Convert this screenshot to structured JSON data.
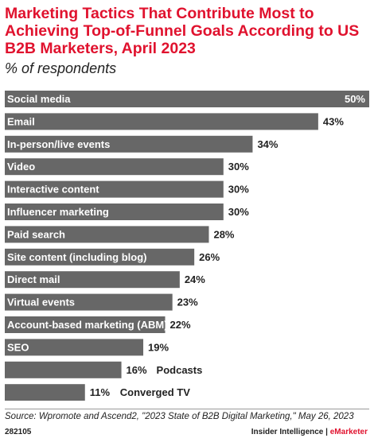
{
  "title": "Marketing Tactics That Contribute Most to Achieving Top-of-Funnel Goals According to US B2B Marketers, April 2023",
  "subtitle": "% of respondents",
  "chart_data": {
    "type": "bar",
    "orientation": "horizontal",
    "categories": [
      "Social media",
      "Email",
      "In-person/live events",
      "Video",
      "Interactive content",
      "Influencer marketing",
      "Paid search",
      "Site content (including blog)",
      "Direct mail",
      "Virtual events",
      "Account-based marketing (ABM)",
      "SEO",
      "Podcasts",
      "Converged TV"
    ],
    "values": [
      50,
      43,
      34,
      30,
      30,
      30,
      28,
      26,
      24,
      23,
      22,
      19,
      16,
      11
    ],
    "value_labels": [
      "50%",
      "43%",
      "34%",
      "30%",
      "30%",
      "30%",
      "28%",
      "26%",
      "24%",
      "23%",
      "22%",
      "19%",
      "16%",
      "11%"
    ],
    "xlim": [
      0,
      50
    ],
    "bar_color": "#676767",
    "grid": false
  },
  "source": "Source: Wpromote and Ascend2, \"2023 State of B2B Digital Marketing,\" May 26, 2023",
  "footer": {
    "id": "282105",
    "company": "Insider Intelligence",
    "separator": " | ",
    "brand": "eMarketer"
  },
  "colors": {
    "accent": "#e0122e",
    "bar": "#676767",
    "text": "#222222"
  }
}
